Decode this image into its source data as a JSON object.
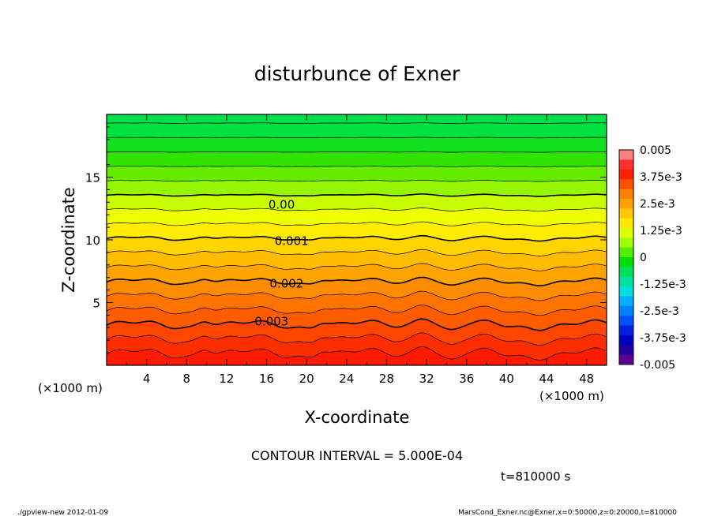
{
  "chart_data": {
    "type": "contour",
    "title": "disturbunce of Exner",
    "xlabel": "X-coordinate",
    "ylabel": "Z-coordinate",
    "x_unit_left": "(×1000 m)",
    "x_unit_right": "(×1000 m)",
    "xlim": [
      0,
      50
    ],
    "ylim": [
      0,
      20
    ],
    "x_ticks": [
      "4",
      "8",
      "12",
      "16",
      "20",
      "24",
      "28",
      "32",
      "36",
      "40",
      "44",
      "48"
    ],
    "y_ticks": [
      "5",
      "10",
      "15"
    ],
    "contour_interval_text": "CONTOUR INTERVAL = 5.000E-04",
    "time_text": "t=810000 s",
    "contour_labels": [
      {
        "text": "0.00",
        "value": 0.0,
        "x": 17.5,
        "z": 12.8
      },
      {
        "text": "0.001",
        "value": 0.001,
        "x": 18.5,
        "z": 9.9
      },
      {
        "text": "0.002",
        "value": 0.002,
        "x": 18.0,
        "z": 6.5
      },
      {
        "text": "0.003",
        "value": 0.003,
        "x": 16.5,
        "z": 3.5
      }
    ],
    "colorbar": {
      "range": [
        -0.005,
        0.005
      ],
      "tick_labels": [
        "0.005",
        "3.75e-3",
        "2.5e-3",
        "1.25e-3",
        "0",
        "-1.25e-3",
        "-2.5e-3",
        "-3.75e-3",
        "-0.005"
      ],
      "colors": [
        "#ff8080",
        "#ff3030",
        "#ff2000",
        "#ff5000",
        "#ff8000",
        "#ffa000",
        "#ffc800",
        "#ffe800",
        "#e0ff00",
        "#a0ff00",
        "#50f000",
        "#00e000",
        "#00e060",
        "#00e0a0",
        "#00e0e0",
        "#00b0ff",
        "#0080ff",
        "#0050ff",
        "#0020e0",
        "#0000c0",
        "#2000a0",
        "#600090"
      ]
    }
  },
  "footer": {
    "left": "./gpview-new   2012-01-09",
    "right": "MarsCond_Exner.nc@Exner,x=0:50000,z=0:20000,t=810000"
  }
}
